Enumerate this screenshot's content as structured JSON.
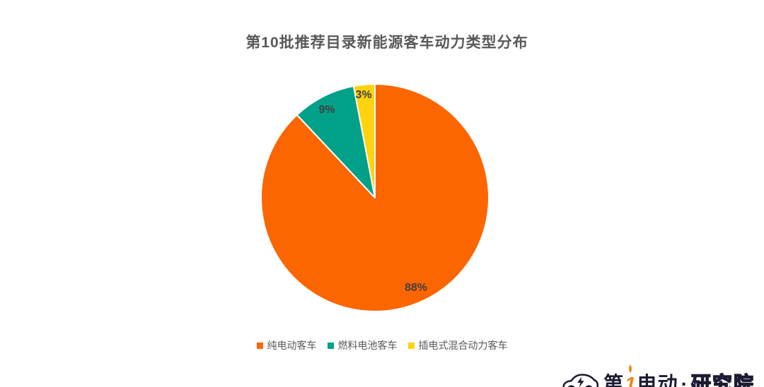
{
  "title": "第10批推荐目录新能源客车动力类型分布",
  "chart_data": {
    "type": "pie",
    "title": "第10批推荐目录新能源客车动力类型分布",
    "start_angle_deg": 0,
    "direction": "clockwise",
    "slices": [
      {
        "label": "纯电动客车",
        "value": 88,
        "display": "88%",
        "color": "#fc6600"
      },
      {
        "label": "燃料电池客车",
        "value": 9,
        "display": "9%",
        "color": "#00a188"
      },
      {
        "label": "插电式混合动力客车",
        "value": 3,
        "display": "3%",
        "color": "#ffd30d"
      }
    ],
    "slice_separator_color": "#ffffff",
    "label_color": "#404040",
    "title_color": "#595959",
    "legend_position": "bottom",
    "legend_text_color": "#595959",
    "background": "#ffffff"
  },
  "logo": {
    "brand_prefix": "第",
    "brand_number": "1",
    "brand_suffix": "电动",
    "separator": "·",
    "institute": "研究院"
  }
}
